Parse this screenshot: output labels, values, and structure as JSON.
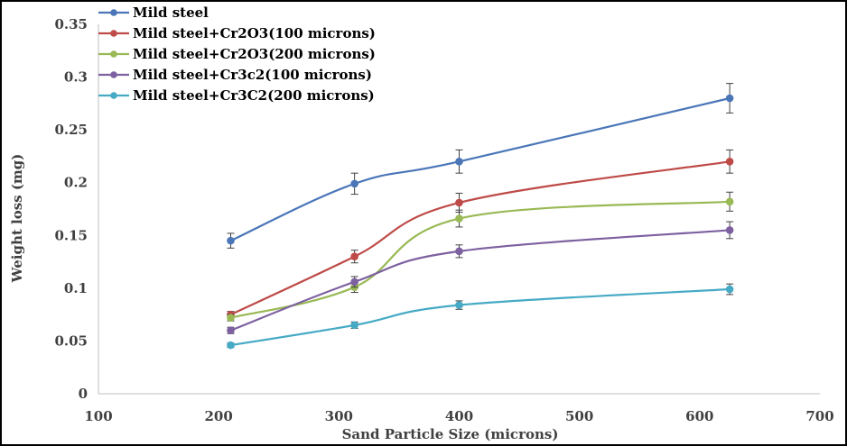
{
  "chart_data": {
    "type": "line",
    "title": "",
    "xlabel": "Sand Particle Size (microns)",
    "ylabel": "Weight loss (mg)",
    "xlim": [
      100,
      700
    ],
    "ylim": [
      0,
      0.35
    ],
    "xticks": [
      100,
      200,
      300,
      400,
      500,
      600,
      700
    ],
    "yticks": [
      0,
      0.05,
      0.1,
      0.15,
      0.2,
      0.25,
      0.3,
      0.35
    ],
    "xtick_labels": [
      "100",
      "200",
      "300",
      "400",
      "500",
      "600",
      "700"
    ],
    "ytick_labels": [
      "0",
      "0.05",
      "0.1",
      "0.15",
      "0.2",
      "0.25",
      "0.3",
      "0.35"
    ],
    "grid": false,
    "smooth": true,
    "legend": {
      "position": "top-left"
    },
    "x": [
      210,
      313,
      400,
      625
    ],
    "series": [
      {
        "name": "Mild steel",
        "color": "#4a76b8",
        "values": [
          0.145,
          0.199,
          0.22,
          0.28
        ],
        "errors": [
          0.007,
          0.01,
          0.011,
          0.014
        ]
      },
      {
        "name": "Mild steel+Cr2O3(100 microns)",
        "color": "#be4b48",
        "values": [
          0.075,
          0.13,
          0.181,
          0.22
        ],
        "errors": [
          0.003,
          0.006,
          0.009,
          0.011
        ]
      },
      {
        "name": "Mild steel+Cr2O3(200 microns)",
        "color": "#98b954",
        "values": [
          0.072,
          0.101,
          0.166,
          0.182
        ],
        "errors": [
          0.003,
          0.005,
          0.008,
          0.009
        ]
      },
      {
        "name": "Mild steel+Cr3c2(100 microns)",
        "color": "#7d60a0",
        "values": [
          0.06,
          0.106,
          0.135,
          0.155
        ],
        "errors": [
          0.003,
          0.005,
          0.006,
          0.008
        ]
      },
      {
        "name": "Mild steel+Cr3C2(200 microns)",
        "color": "#46aac5",
        "values": [
          0.046,
          0.065,
          0.084,
          0.099
        ],
        "errors": [
          0.002,
          0.003,
          0.004,
          0.005
        ]
      }
    ]
  }
}
